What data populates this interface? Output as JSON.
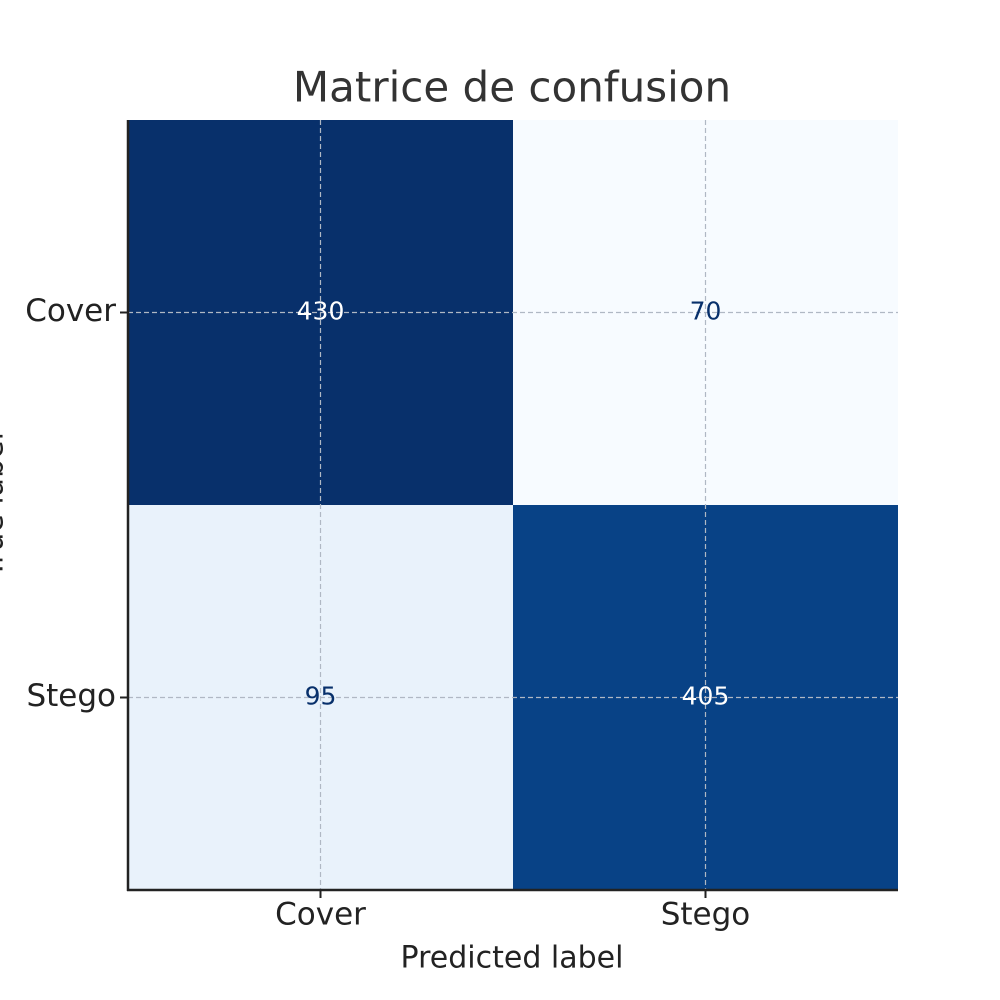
{
  "chart_data": {
    "type": "heatmap",
    "title": "Matrice de confusion",
    "x_label": "Predicted label",
    "y_label": "True label",
    "x_categories": [
      "Cover",
      "Stego"
    ],
    "y_categories": [
      "Cover",
      "Stego"
    ],
    "values": [
      [
        430,
        70
      ],
      [
        95,
        405
      ]
    ],
    "colormap": "Blues",
    "grid": true
  }
}
